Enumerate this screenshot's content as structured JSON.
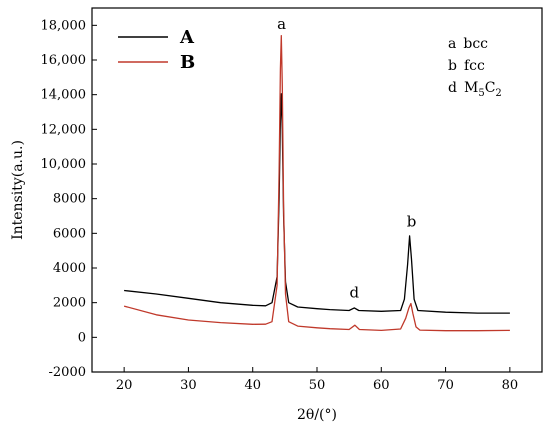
{
  "chart_data": {
    "type": "line",
    "xlabel": "2θ/(°)",
    "ylabel": "Intensity(a.u.)",
    "xlim": [
      15,
      85
    ],
    "ylim": [
      -2000,
      19000
    ],
    "x_ticks": [
      20,
      30,
      40,
      50,
      60,
      70,
      80
    ],
    "y_ticks": [
      -2000,
      0,
      2000,
      4000,
      6000,
      8000,
      10000,
      12000,
      14000,
      16000,
      18000
    ],
    "y_tick_labels": [
      "-2000",
      "0",
      "2000",
      "4000",
      "6000",
      "8000",
      "10,000",
      "12,000",
      "14,000",
      "16,000",
      "18,000"
    ],
    "legend": {
      "position": "top-left",
      "entries": [
        "A",
        "B"
      ]
    },
    "phase_key": [
      {
        "letter": "a",
        "name": "bcc"
      },
      {
        "letter": "b",
        "name": "fcc"
      },
      {
        "letter": "d",
        "name": "M",
        "sub1": "5",
        "mid": "C",
        "sub2": "2"
      }
    ],
    "peak_labels": [
      {
        "text": "a",
        "x": 44.5,
        "y": 17800
      },
      {
        "text": "d",
        "x": 55.8,
        "y": 2300
      },
      {
        "text": "b",
        "x": 64.7,
        "y": 6400
      }
    ],
    "series": [
      {
        "name": "A",
        "color": "#000000",
        "points": [
          [
            20,
            2700
          ],
          [
            25,
            2500
          ],
          [
            30,
            2250
          ],
          [
            35,
            2000
          ],
          [
            40,
            1850
          ],
          [
            42,
            1820
          ],
          [
            43,
            2000
          ],
          [
            43.8,
            3500
          ],
          [
            44.1,
            8000
          ],
          [
            44.3,
            12500
          ],
          [
            44.45,
            14050
          ],
          [
            44.6,
            12000
          ],
          [
            44.8,
            7000
          ],
          [
            45.1,
            3200
          ],
          [
            45.6,
            2000
          ],
          [
            47,
            1750
          ],
          [
            50,
            1650
          ],
          [
            52,
            1600
          ],
          [
            55,
            1550
          ],
          [
            55.8,
            1700
          ],
          [
            56.5,
            1550
          ],
          [
            60,
            1500
          ],
          [
            63,
            1550
          ],
          [
            63.6,
            2200
          ],
          [
            64.1,
            4200
          ],
          [
            64.4,
            5850
          ],
          [
            64.7,
            4500
          ],
          [
            65.1,
            2200
          ],
          [
            65.7,
            1550
          ],
          [
            70,
            1450
          ],
          [
            75,
            1400
          ],
          [
            80,
            1400
          ]
        ]
      },
      {
        "name": "B",
        "color": "#c0392b",
        "points": [
          [
            20,
            1800
          ],
          [
            25,
            1300
          ],
          [
            30,
            1000
          ],
          [
            35,
            850
          ],
          [
            40,
            750
          ],
          [
            42,
            760
          ],
          [
            43,
            900
          ],
          [
            43.8,
            3000
          ],
          [
            44.1,
            9500
          ],
          [
            44.3,
            15500
          ],
          [
            44.45,
            17400
          ],
          [
            44.6,
            14500
          ],
          [
            44.8,
            7500
          ],
          [
            45.1,
            2500
          ],
          [
            45.6,
            900
          ],
          [
            47,
            650
          ],
          [
            50,
            550
          ],
          [
            52,
            500
          ],
          [
            55,
            450
          ],
          [
            55.9,
            700
          ],
          [
            56.6,
            450
          ],
          [
            60,
            400
          ],
          [
            63,
            480
          ],
          [
            63.8,
            1100
          ],
          [
            64.3,
            1700
          ],
          [
            64.6,
            1950
          ],
          [
            64.9,
            1400
          ],
          [
            65.4,
            600
          ],
          [
            66,
            420
          ],
          [
            70,
            380
          ],
          [
            75,
            380
          ],
          [
            80,
            400
          ]
        ]
      }
    ]
  }
}
